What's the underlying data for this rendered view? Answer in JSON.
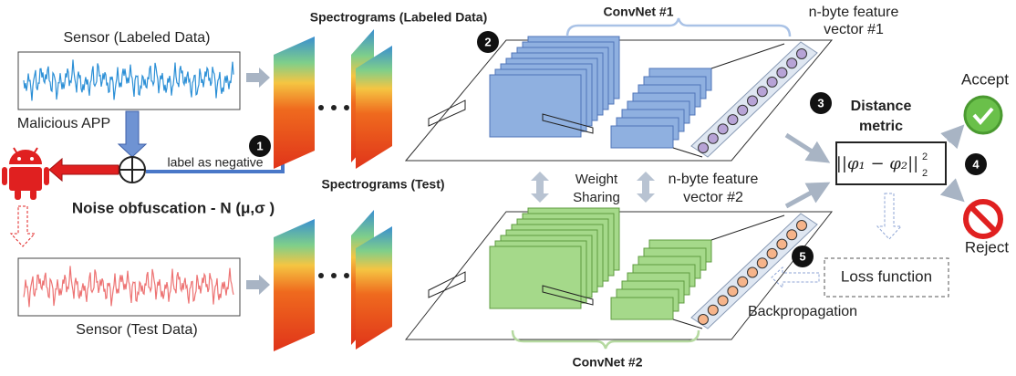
{
  "sensor_labeled": "Sensor (Labeled Data)",
  "malicious_app": "Malicious APP",
  "label_negative": "label as negative",
  "noise": "Noise obfuscation - N (μ,σ )",
  "sensor_test": "Sensor (Test Data)",
  "spectrograms_labeled": "Spectrograms (Labeled Data)",
  "spectrograms_test": "Spectrograms (Test)",
  "convnet1": "ConvNet #1",
  "convnet2": "ConvNet #2",
  "feature1": [
    "n-byte feature",
    "vector #1"
  ],
  "feature2": [
    "n-byte feature",
    "vector #2"
  ],
  "weight_sharing": [
    "Weight",
    "Sharing"
  ],
  "distance_metric": [
    "Distance",
    "metric"
  ],
  "formula": {
    "norm": "||φ₁ − φ₂||",
    "sup": "2",
    "sub": "2"
  },
  "accept": "Accept",
  "reject": "Reject",
  "loss": "Loss function",
  "backprop": "Backpropagation",
  "steps": [
    "1",
    "2",
    "3",
    "4",
    "5"
  ]
}
